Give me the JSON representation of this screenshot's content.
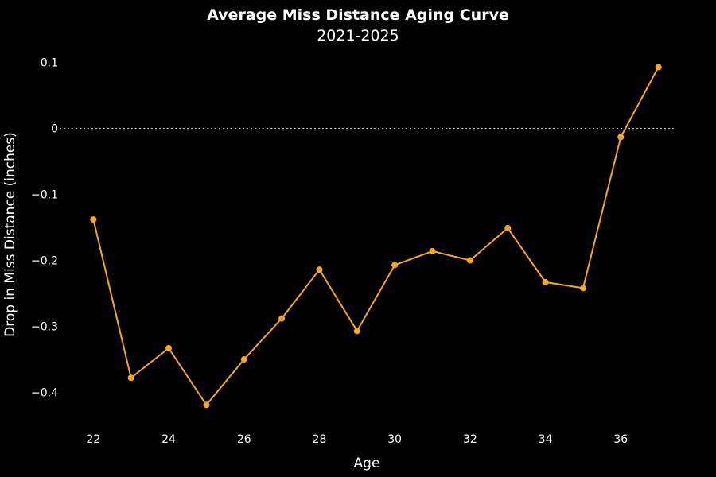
{
  "chart_data": {
    "type": "line",
    "title": "Average Miss Distance Aging Curve",
    "subtitle": "2021-2025",
    "xlabel": "Age",
    "ylabel": "Drop in Miss Distance (inches)",
    "xlim": [
      21,
      38
    ],
    "ylim": [
      -0.45,
      0.12
    ],
    "x_ticks": [
      22,
      24,
      26,
      28,
      30,
      32,
      34,
      36
    ],
    "y_ticks": [
      0.1,
      0,
      -0.1,
      -0.2,
      -0.3,
      -0.4
    ],
    "y_tick_labels": [
      "0.1",
      "0",
      "−0.1",
      "−0.2",
      "−0.3",
      "−0.4"
    ],
    "reference_line": {
      "y": 0,
      "style": "dotted"
    },
    "grid": false,
    "series": [
      {
        "x": [
          22,
          23,
          24,
          25,
          26,
          27,
          28,
          29,
          30,
          31,
          32,
          33,
          34,
          35,
          36,
          37
        ],
        "y": [
          -0.138,
          -0.378,
          -0.333,
          -0.419,
          -0.35,
          -0.288,
          -0.214,
          -0.307,
          -0.207,
          -0.186,
          -0.2,
          -0.151,
          -0.233,
          -0.242,
          -0.013,
          0.093
        ],
        "color": "#f5a623"
      }
    ]
  }
}
